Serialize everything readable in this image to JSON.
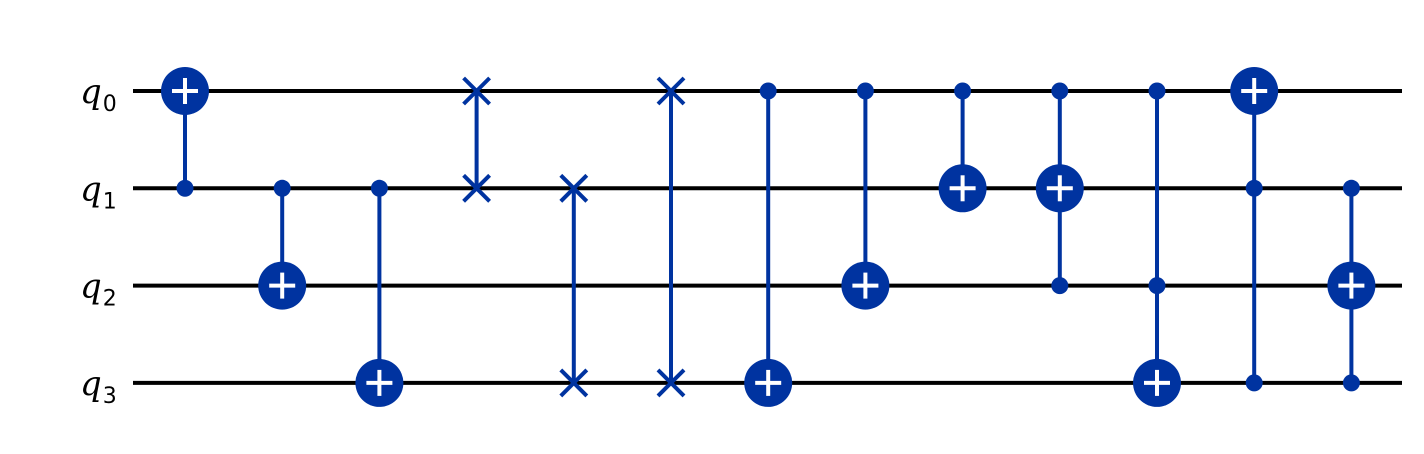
{
  "diagram": {
    "type": "quantum-circuit",
    "gate_color": "#0033a0",
    "wire_color": "#000000",
    "qubits": [
      {
        "symbol": "q",
        "index": "0"
      },
      {
        "symbol": "q",
        "index": "1"
      },
      {
        "symbol": "q",
        "index": "2"
      },
      {
        "symbol": "q",
        "index": "3"
      }
    ],
    "gates": [
      {
        "type": "cx",
        "controls": [
          1
        ],
        "target": 0
      },
      {
        "type": "cx",
        "controls": [
          1
        ],
        "target": 2
      },
      {
        "type": "cx",
        "controls": [
          1
        ],
        "target": 3
      },
      {
        "type": "swap",
        "qubits": [
          0,
          1
        ]
      },
      {
        "type": "swap",
        "qubits": [
          1,
          3
        ]
      },
      {
        "type": "swap",
        "qubits": [
          0,
          3
        ]
      },
      {
        "type": "cx",
        "controls": [
          0
        ],
        "target": 3
      },
      {
        "type": "cx",
        "controls": [
          0
        ],
        "target": 2
      },
      {
        "type": "cx",
        "controls": [
          0
        ],
        "target": 1
      },
      {
        "type": "ccx",
        "controls": [
          0,
          2
        ],
        "target": 1
      },
      {
        "type": "ccx",
        "controls": [
          0,
          2
        ],
        "target": 3
      },
      {
        "type": "ccx",
        "controls": [
          1,
          3
        ],
        "target": 0
      },
      {
        "type": "ccx",
        "controls": [
          1,
          3
        ],
        "target": 2
      }
    ]
  }
}
